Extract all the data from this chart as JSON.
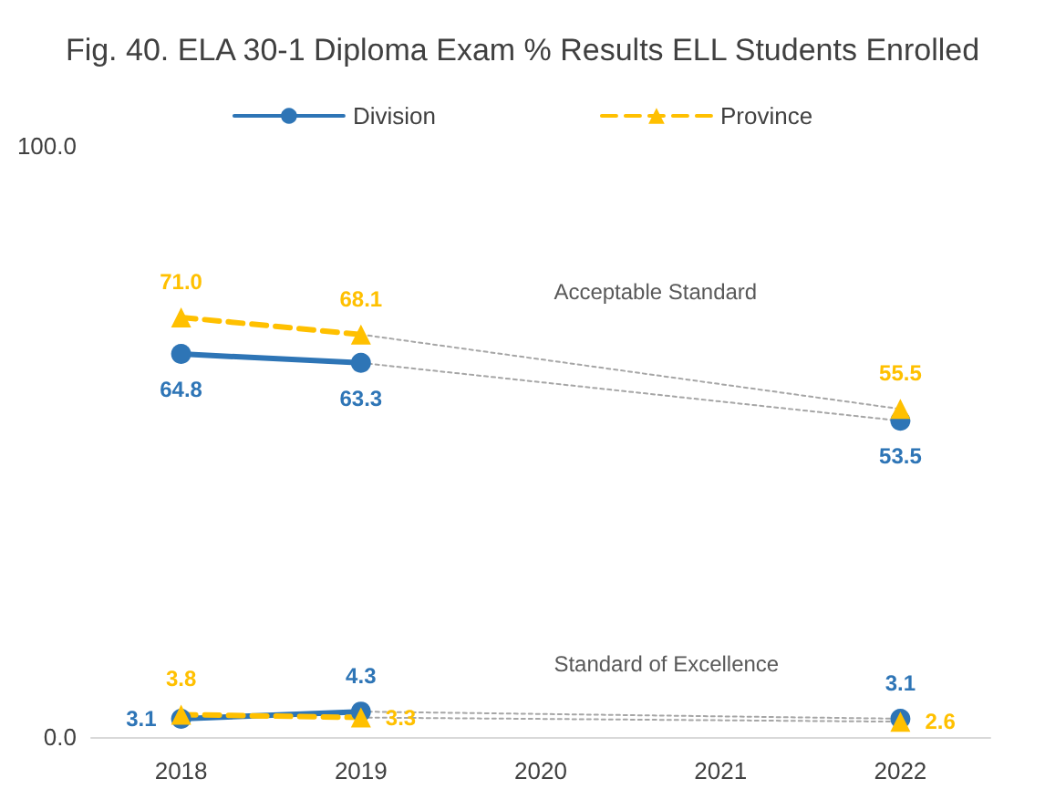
{
  "chart_data": {
    "type": "line",
    "title": "Fig. 40. ELA 30-1 Diploma Exam % Results ELL Students Enrolled",
    "categories": [
      "2018",
      "2019",
      "2020",
      "2021",
      "2022"
    ],
    "series": [
      {
        "name": "Division",
        "color": "#2e75b6",
        "values": [
          64.8,
          63.3,
          null,
          null,
          53.5
        ],
        "value_labels": [
          "64.8",
          "63.3",
          null,
          null,
          "53.5"
        ],
        "marker": "circle",
        "line_style": "solid"
      },
      {
        "name": "Province",
        "color": "#ffc000",
        "values": [
          71.0,
          68.1,
          null,
          null,
          55.5
        ],
        "value_labels": [
          "71.0",
          "68.1",
          null,
          null,
          "55.5"
        ],
        "marker": "triangle",
        "line_style": "dashed"
      },
      {
        "color": "#2e75b6",
        "values": [
          3.1,
          4.3,
          null,
          null,
          3.1
        ],
        "value_labels": [
          "3.1",
          "4.3",
          null,
          null,
          "3.1"
        ],
        "marker": "circle",
        "line_style": "solid"
      },
      {
        "color": "#ffc000",
        "values": [
          3.8,
          3.3,
          null,
          null,
          2.6
        ],
        "value_labels": [
          "3.8",
          "3.3",
          null,
          null,
          "2.6"
        ],
        "marker": "triangle",
        "line_style": "dashed"
      },
      {
        "color": "#a6a6a6",
        "values": [
          null,
          63.3,
          null,
          null,
          53.5
        ],
        "marker": "none",
        "line_style": "dotted"
      },
      {
        "color": "#a6a6a6",
        "values": [
          null,
          68.1,
          null,
          null,
          55.5
        ],
        "marker": "none",
        "line_style": "dotted"
      },
      {
        "color": "#a6a6a6",
        "values": [
          null,
          4.3,
          null,
          null,
          3.1
        ],
        "marker": "none",
        "line_style": "dotted"
      },
      {
        "color": "#a6a6a6",
        "values": [
          null,
          3.3,
          null,
          null,
          2.6
        ],
        "marker": "none",
        "line_style": "dotted"
      }
    ],
    "ylim": [
      0,
      100
    ],
    "yticks": [
      {
        "value": 0,
        "label": "0.0"
      },
      {
        "value": 100,
        "label": "100.0"
      }
    ],
    "annotations": [
      "Acceptable Standard",
      "Standard of Excellence"
    ],
    "legend": "top",
    "grid": false
  }
}
